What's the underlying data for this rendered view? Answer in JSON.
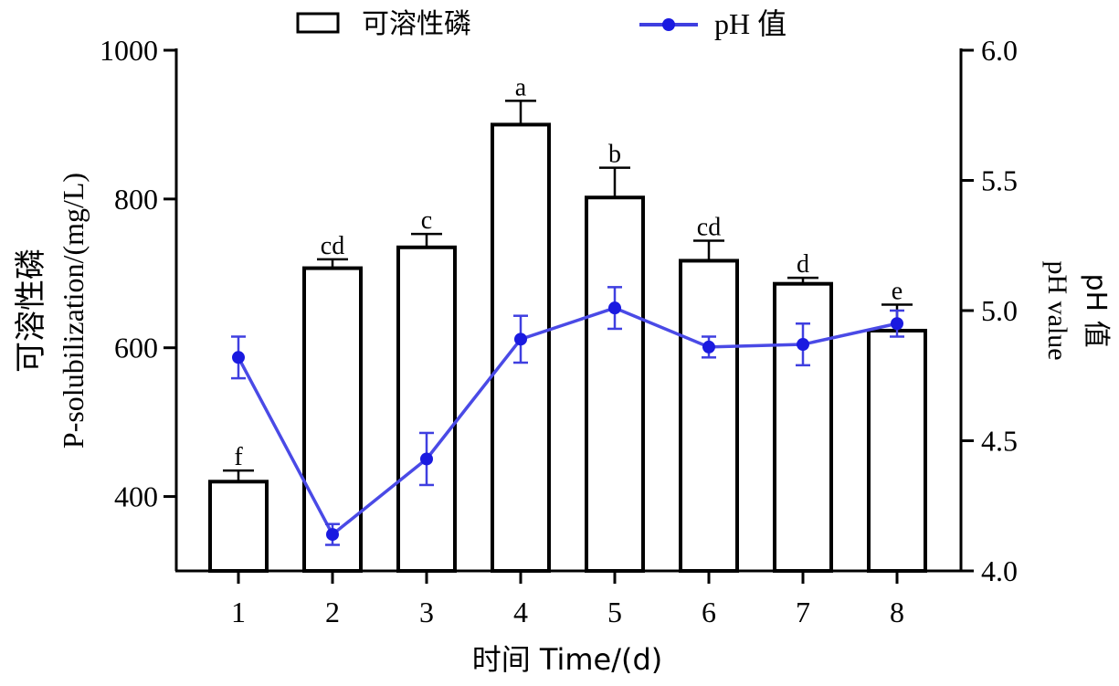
{
  "chart_data": {
    "type": "bar",
    "categories": [
      "1",
      "2",
      "3",
      "4",
      "5",
      "6",
      "7",
      "8"
    ],
    "xlabel": "时间 Time/(d)",
    "ylabel_cn": "可溶性磷",
    "ylabel_en": "P-solubilization/(mg/L)",
    "y2label_cn": "pH 值",
    "y2label_en": "pH value",
    "ylim": [
      300,
      1000
    ],
    "yticks": [
      "400",
      "600",
      "800",
      "1000"
    ],
    "y2lim": [
      4.0,
      6.0
    ],
    "y2ticks": [
      "4.0",
      "4.5",
      "5.0",
      "5.5",
      "6.0"
    ],
    "legend_position": "top",
    "series": [
      {
        "name": "可溶性磷",
        "type": "bar",
        "axis": "left",
        "values": [
          420,
          707,
          735,
          900,
          802,
          717,
          686,
          623
        ],
        "errors": [
          15,
          12,
          18,
          32,
          40,
          27,
          8,
          35
        ],
        "labels": [
          "f",
          "cd",
          "c",
          "a",
          "b",
          "cd",
          "d",
          "e"
        ],
        "color": "#000000"
      },
      {
        "name": "pH 值",
        "type": "line",
        "axis": "right",
        "values": [
          4.82,
          4.14,
          4.43,
          4.89,
          5.01,
          4.86,
          4.87,
          4.95
        ],
        "errors": [
          0.08,
          0.04,
          0.1,
          0.09,
          0.08,
          0.04,
          0.08,
          0.05
        ],
        "color": "#3f3fe0"
      }
    ]
  }
}
